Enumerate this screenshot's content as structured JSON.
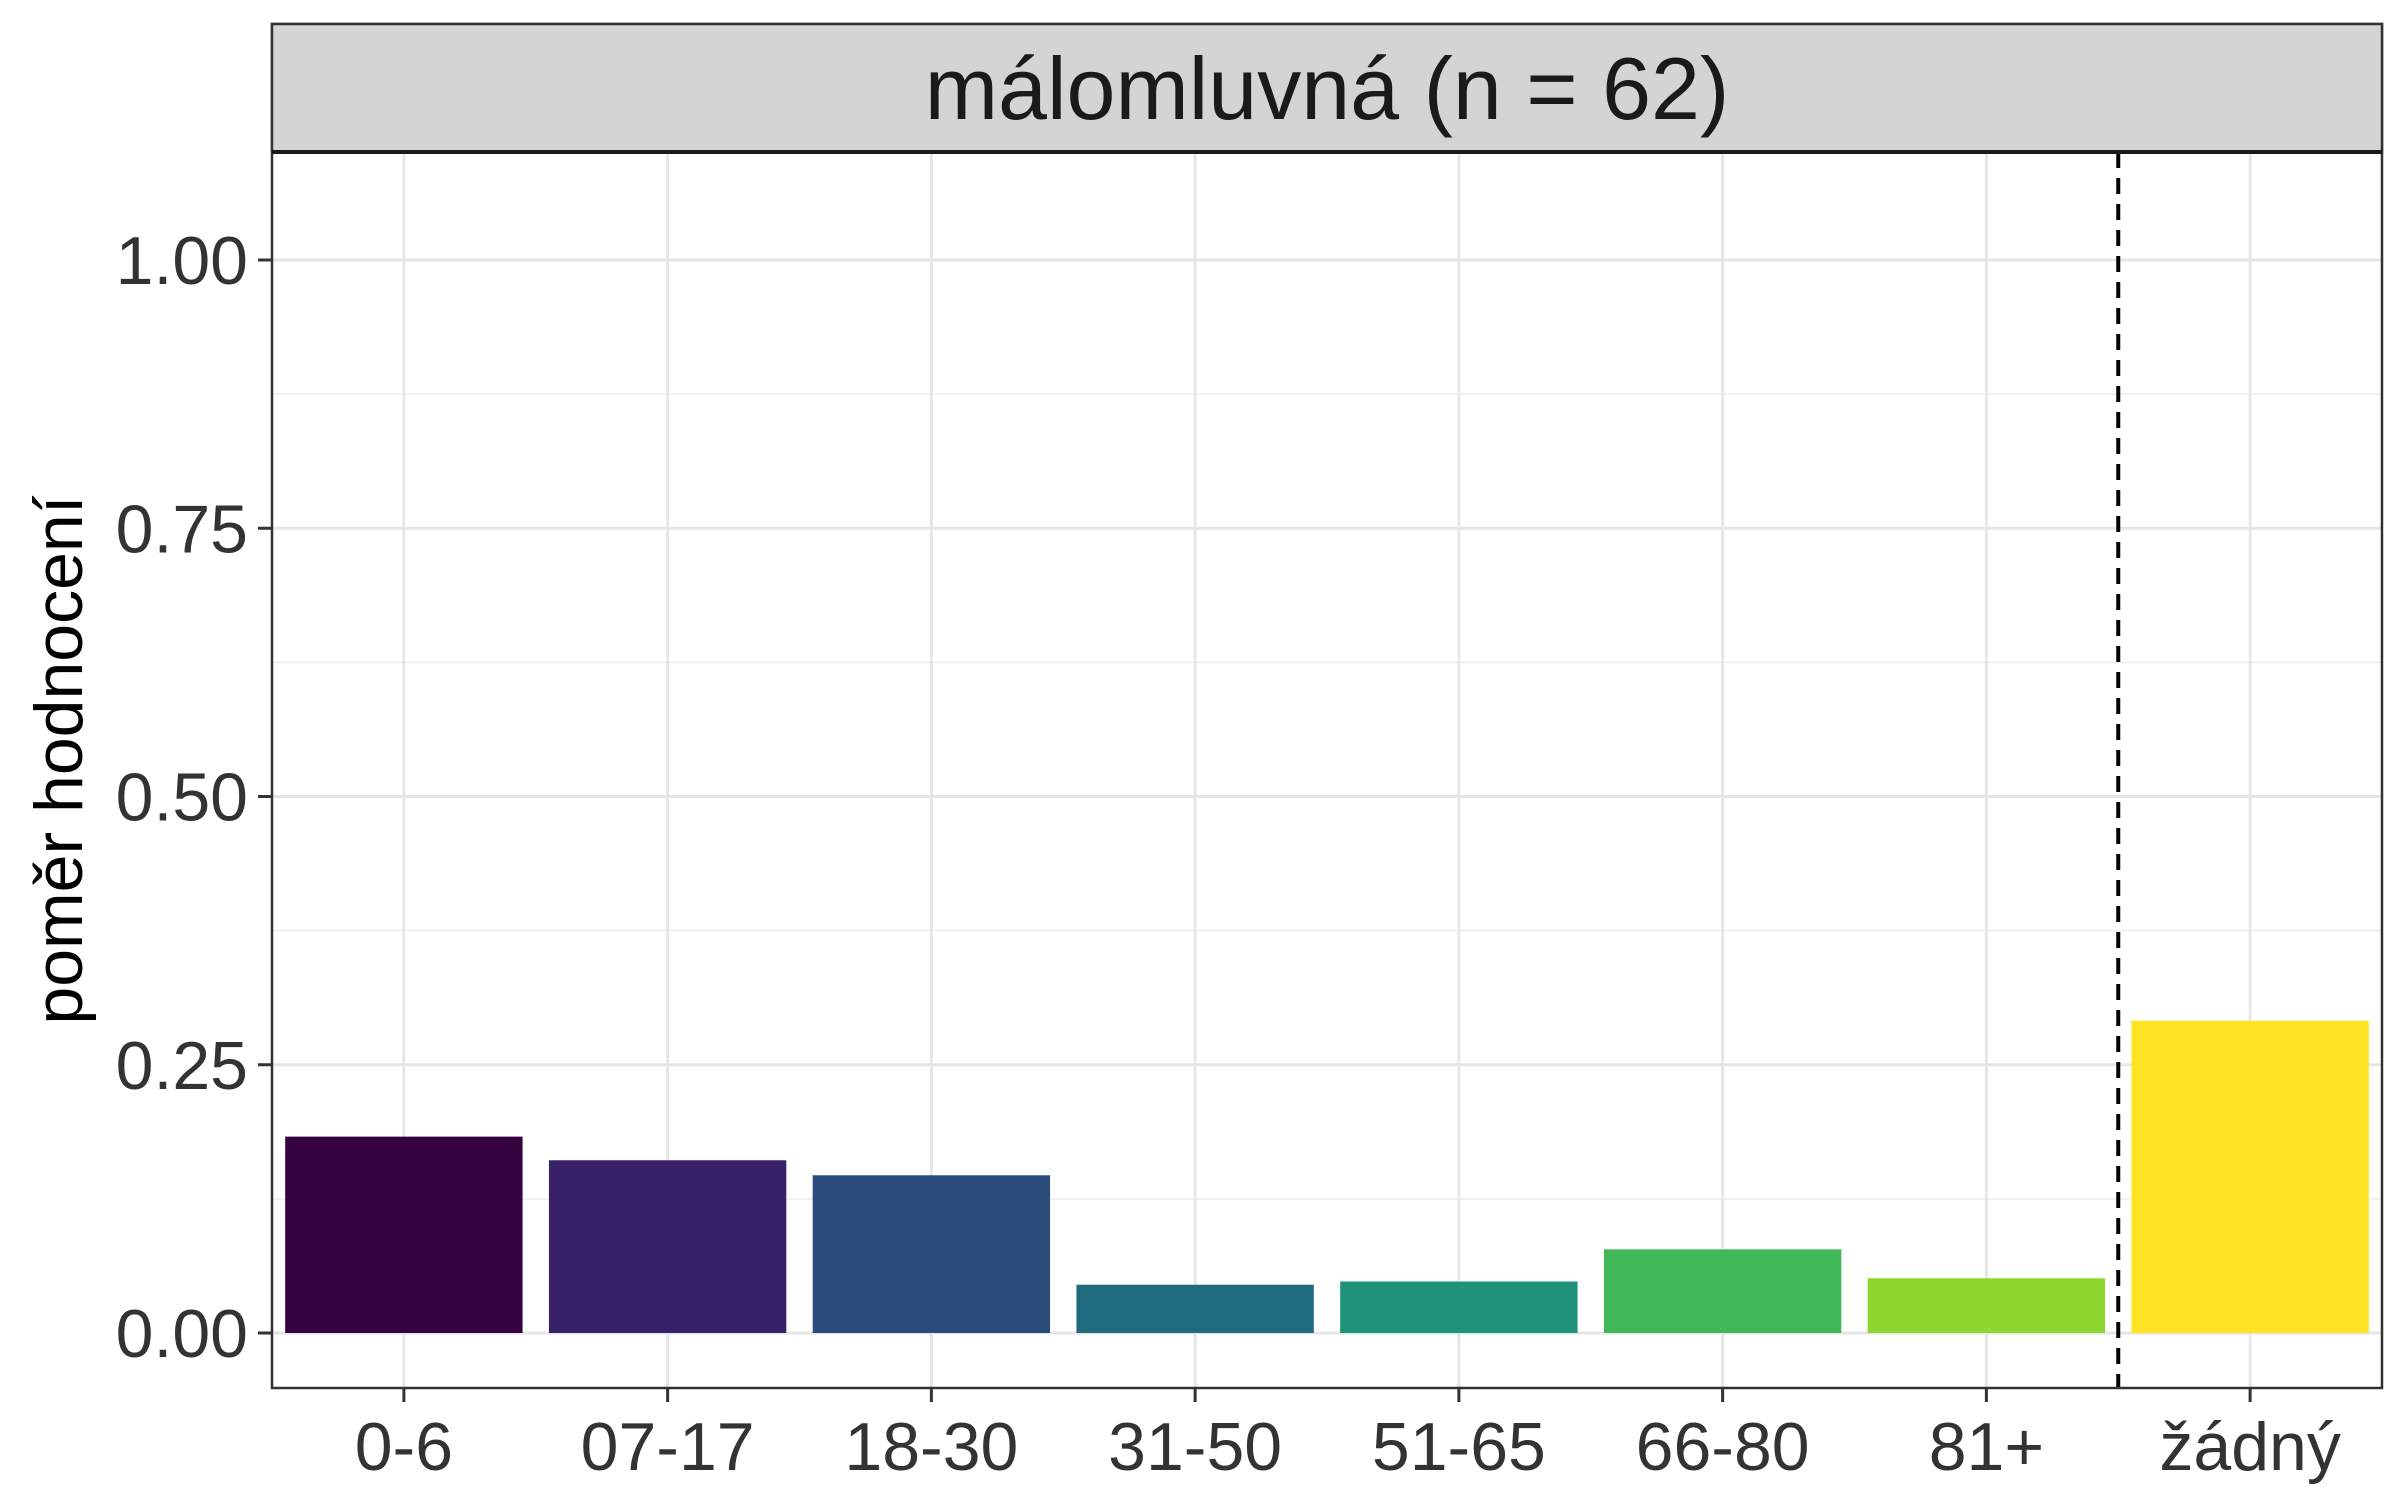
{
  "chart_data": {
    "type": "bar",
    "facet_title": "málomluvná (n = 62)",
    "ylabel": "poměr hodnocení",
    "xlabel": "",
    "categories": [
      "0-6",
      "07-17",
      "18-30",
      "31-50",
      "51-65",
      "66-80",
      "81+",
      "žádný"
    ],
    "values": [
      0.183,
      0.161,
      0.147,
      0.045,
      0.048,
      0.078,
      0.051,
      0.291
    ],
    "colors": [
      "#35013F",
      "#38216A",
      "#2B4B7A",
      "#206B7D",
      "#1F937A",
      "#40B858",
      "#8FD62E",
      "#FDE321"
    ],
    "ylim": [
      -0.05,
      1.1
    ],
    "yticks": [
      0.0,
      0.25,
      0.5,
      0.75,
      1.0
    ],
    "ytick_labels": [
      "0.00",
      "0.25",
      "0.50",
      "0.75",
      "1.00"
    ],
    "separator_after_index": 6,
    "separator_style": "dashed",
    "grid": true,
    "legend": "none"
  }
}
